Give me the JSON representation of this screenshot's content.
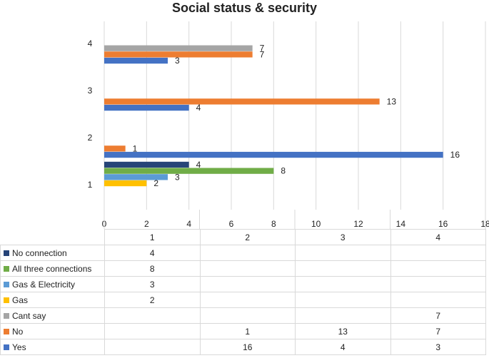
{
  "chart_data": {
    "type": "bar",
    "orientation": "horizontal",
    "title": "Social status & security",
    "categories": [
      "1",
      "2",
      "3",
      "4"
    ],
    "xlim": [
      0,
      18
    ],
    "xticks": [
      0,
      2,
      4,
      6,
      8,
      10,
      12,
      14,
      16,
      18
    ],
    "grid": true,
    "legend": "data-table-below",
    "series": [
      {
        "name": "No connection",
        "color": "#264478",
        "values": [
          4,
          null,
          null,
          null
        ]
      },
      {
        "name": "All three connections",
        "color": "#70ad47",
        "values": [
          8,
          null,
          null,
          null
        ]
      },
      {
        "name": "Gas & Electricity",
        "color": "#5b9bd5",
        "values": [
          3,
          null,
          null,
          null
        ]
      },
      {
        "name": "Gas",
        "color": "#ffc000",
        "values": [
          2,
          null,
          null,
          null
        ]
      },
      {
        "name": "Cant say",
        "color": "#a5a5a5",
        "values": [
          null,
          null,
          null,
          7
        ]
      },
      {
        "name": "No",
        "color": "#ed7d31",
        "values": [
          null,
          1,
          13,
          7
        ]
      },
      {
        "name": "Yes",
        "color": "#4472c4",
        "values": [
          null,
          16,
          4,
          3
        ]
      }
    ]
  }
}
